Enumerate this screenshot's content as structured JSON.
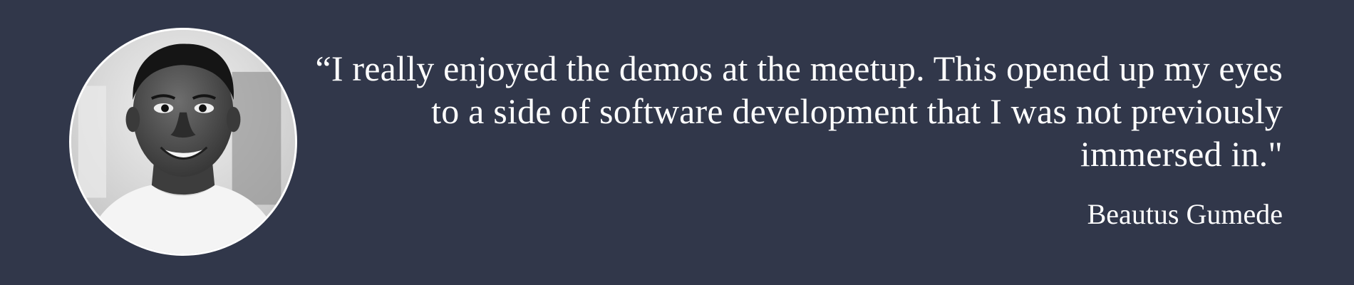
{
  "testimonial": {
    "quote": "“I really enjoyed the demos at the meetup. This opened up my eyes to a side of software development that I was not previously immersed in.\"",
    "author": "Beautus Gumede"
  },
  "colors": {
    "background": "#31374a",
    "text": "#ffffff",
    "avatar_border": "#ffffff"
  },
  "icons": {
    "avatar": "grayscale-portrait-photo"
  }
}
